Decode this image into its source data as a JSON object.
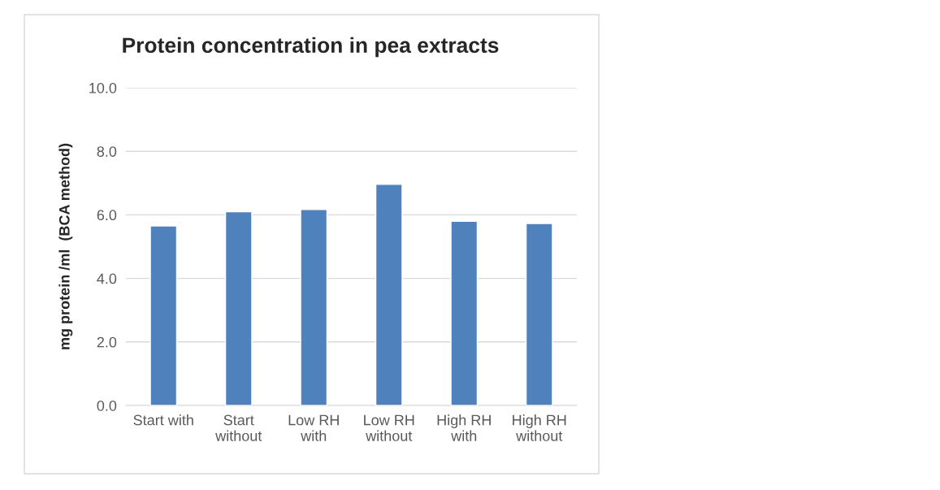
{
  "chart_data": {
    "type": "bar",
    "title": "Protein concentration in pea extracts",
    "ylabel": "mg protein /ml  (BCA method)",
    "categories": [
      "Start with",
      "Start\nwithout",
      "Low RH\nwith",
      "Low RH\nwithout",
      "High RH\nwith",
      "High RH\nwithout"
    ],
    "values": [
      5.65,
      6.1,
      6.17,
      6.96,
      5.8,
      5.73
    ],
    "color": "#4f81bd",
    "ylim": [
      0,
      10
    ],
    "yticks": [
      {
        "value": 0,
        "label": "0.0"
      },
      {
        "value": 2,
        "label": "2.0"
      },
      {
        "value": 4,
        "label": "4.0"
      },
      {
        "value": 6,
        "label": "6.0"
      },
      {
        "value": 8,
        "label": "8.0"
      },
      {
        "value": 10,
        "label": "10.0"
      }
    ],
    "grid": "y"
  }
}
